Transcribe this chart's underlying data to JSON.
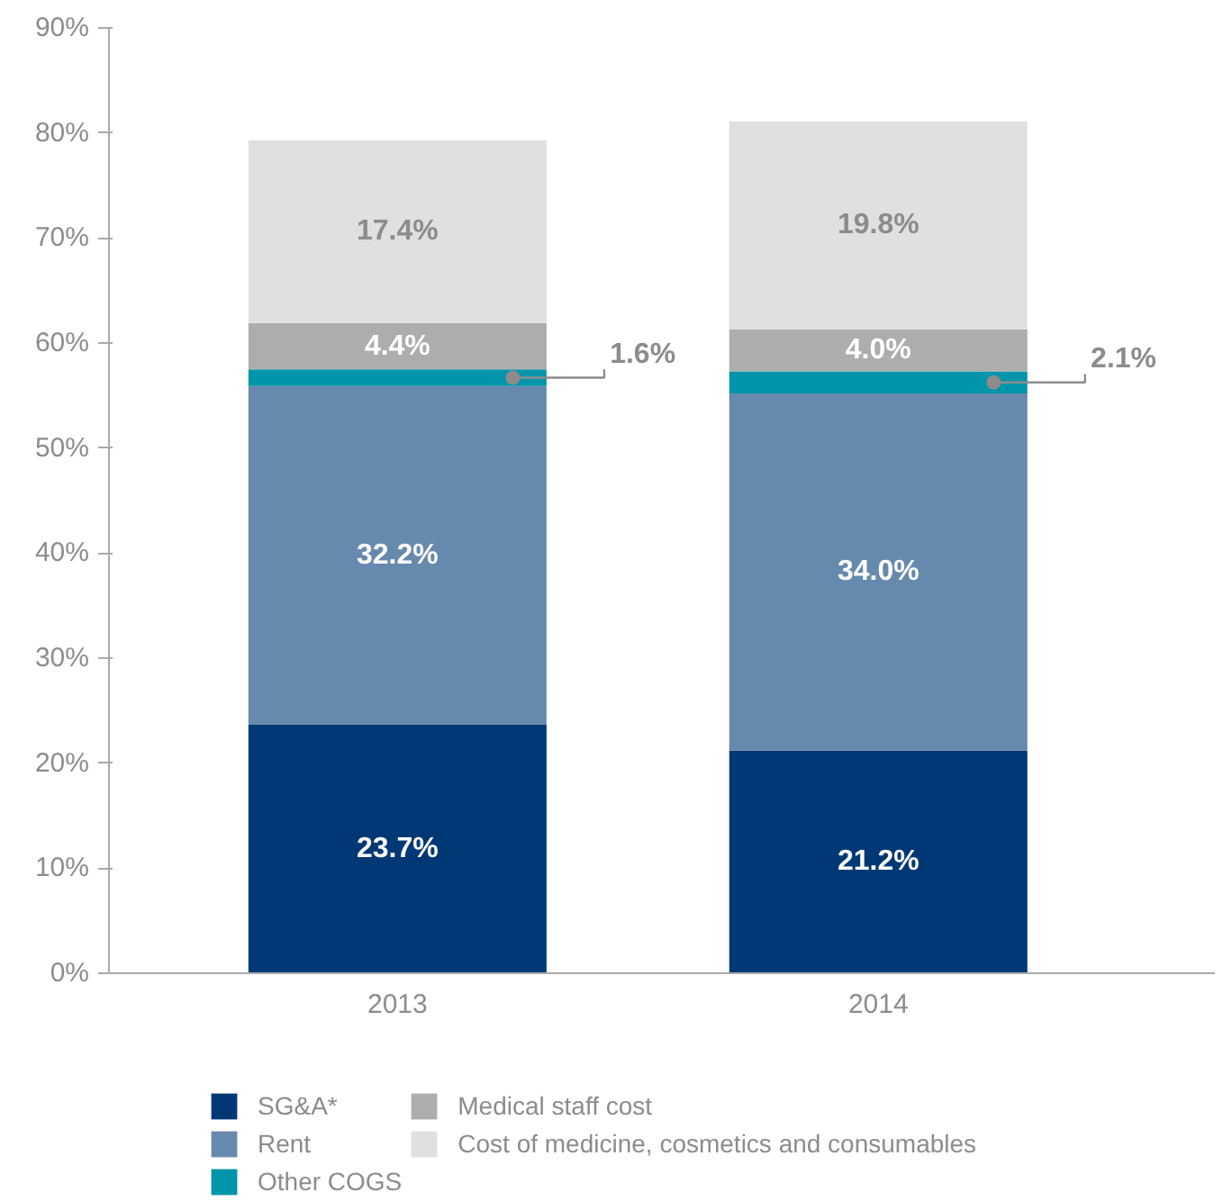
{
  "chart_data": {
    "type": "bar",
    "stacked": true,
    "categories": [
      "2013",
      "2014"
    ],
    "series": [
      {
        "name": "SG&A*",
        "color": "#003876",
        "values": [
          23.7,
          21.2
        ]
      },
      {
        "name": "Rent",
        "color": "#6689ae",
        "values": [
          32.2,
          34.0
        ]
      },
      {
        "name": "Other COGS",
        "color": "#0095aa",
        "values": [
          1.6,
          2.1
        ]
      },
      {
        "name": "Medical staff cost",
        "color": "#adadad",
        "values": [
          4.4,
          4.0
        ]
      },
      {
        "name": "Cost of medicine, cosmetics and consumables",
        "color": "#e0e0e0",
        "values": [
          17.4,
          19.8
        ]
      }
    ],
    "value_labels": [
      [
        "23.7%",
        "21.2%"
      ],
      [
        "32.2%",
        "34.0%"
      ],
      [
        "1.6%",
        "2.1%"
      ],
      [
        "4.4%",
        "4.0%"
      ],
      [
        "17.4%",
        "19.8%"
      ]
    ],
    "ylim": [
      0,
      90
    ],
    "yticks": [
      {
        "value": 0,
        "label": "0%"
      },
      {
        "value": 10,
        "label": "10%"
      },
      {
        "value": 20,
        "label": "20%"
      },
      {
        "value": 30,
        "label": "30%"
      },
      {
        "value": 40,
        "label": "40%"
      },
      {
        "value": 50,
        "label": "50%"
      },
      {
        "value": 60,
        "label": "60%"
      },
      {
        "value": 70,
        "label": "70%"
      },
      {
        "value": 80,
        "label": "80%"
      },
      {
        "value": 90,
        "label": "90%"
      }
    ],
    "grid": false,
    "legend": "bottom"
  }
}
